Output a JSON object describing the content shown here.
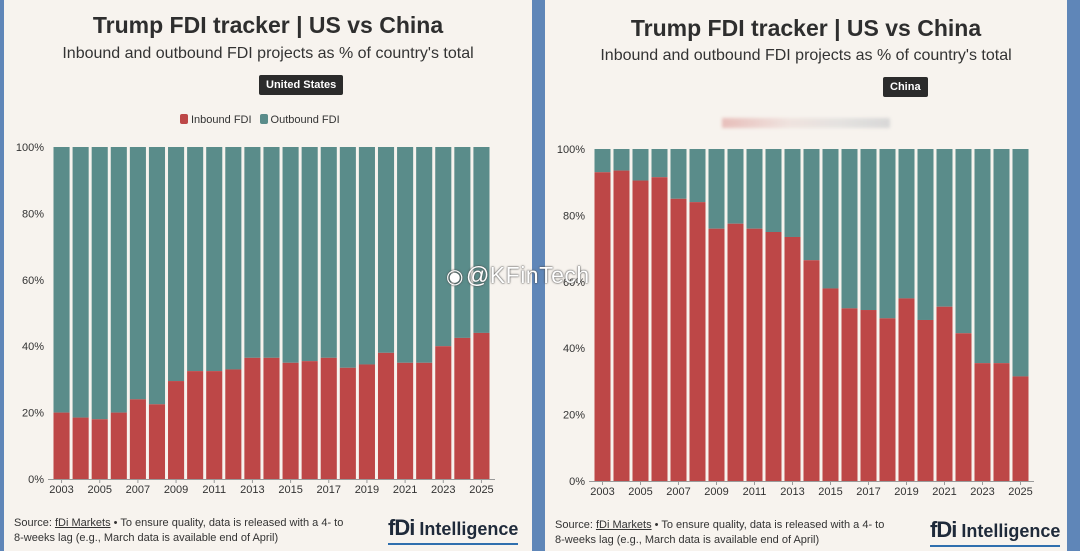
{
  "title": "Trump FDI tracker | US vs China",
  "subtitle": "Inbound and outbound FDI projects as % of country's total",
  "legend": {
    "inbound": "Inbound FDI",
    "outbound": "Outbound FDI"
  },
  "source": {
    "prefix": "Source: ",
    "link": "fDi Markets",
    "rest": " • To ensure quality, data is released with a 4- to",
    "line2": "8-weeks lag (e.g., March data is available end of April)"
  },
  "brand": {
    "logo": "fDi",
    "name": "Intelligence"
  },
  "watermark": "@KFinTech",
  "colors": {
    "inbound": "#bd4747",
    "outbound": "#5a8c8a",
    "background": "#f7f3ee",
    "frame": "#5f86b8"
  },
  "chart_data": [
    {
      "type": "bar",
      "stacked": true,
      "panel_label": "United States",
      "x_tick_labels": [
        "2003",
        "2005",
        "2007",
        "2009",
        "2011",
        "2013",
        "2015",
        "2017",
        "2019",
        "2021",
        "2023",
        "2025"
      ],
      "y_tick_labels": [
        "0%",
        "20%",
        "40%",
        "60%",
        "80%",
        "100%"
      ],
      "ylim": [
        0,
        100
      ],
      "categories": [
        2003,
        2004,
        2005,
        2006,
        2007,
        2008,
        2009,
        2010,
        2011,
        2012,
        2013,
        2014,
        2015,
        2016,
        2017,
        2018,
        2019,
        2020,
        2021,
        2022,
        2023,
        2024,
        2025
      ],
      "series": [
        {
          "name": "Inbound FDI",
          "values": [
            20,
            18.5,
            18,
            20,
            24,
            22.5,
            29.5,
            32.5,
            32.5,
            33,
            36.5,
            36.5,
            35,
            35.5,
            36.5,
            33.5,
            34.5,
            38,
            35,
            35,
            40,
            42.5,
            44
          ]
        },
        {
          "name": "Outbound FDI",
          "values": [
            80,
            81.5,
            82,
            80,
            76,
            77.5,
            70.5,
            67.5,
            67.5,
            67,
            63.5,
            63.5,
            65,
            64.5,
            63.5,
            66.5,
            65.5,
            62,
            65,
            65,
            60,
            57.5,
            56
          ]
        }
      ]
    },
    {
      "type": "bar",
      "stacked": true,
      "panel_label": "China",
      "x_tick_labels": [
        "2003",
        "2005",
        "2007",
        "2009",
        "2011",
        "2013",
        "2015",
        "2017",
        "2019",
        "2021",
        "2023",
        "2025"
      ],
      "y_tick_labels": [
        "0%",
        "20%",
        "40%",
        "60%",
        "80%",
        "100%"
      ],
      "ylim": [
        0,
        100
      ],
      "categories": [
        2003,
        2004,
        2005,
        2006,
        2007,
        2008,
        2009,
        2010,
        2011,
        2012,
        2013,
        2014,
        2015,
        2016,
        2017,
        2018,
        2019,
        2020,
        2021,
        2022,
        2023,
        2024,
        2025
      ],
      "series": [
        {
          "name": "Inbound FDI",
          "values": [
            93,
            93.5,
            90.5,
            91.5,
            85,
            84,
            76,
            77.5,
            76,
            75,
            73.5,
            66.5,
            58,
            52,
            51.5,
            49,
            55,
            48.5,
            52.5,
            44.5,
            35.5,
            35.5,
            31.5
          ]
        },
        {
          "name": "Outbound FDI",
          "values": [
            7,
            6.5,
            9.5,
            8.5,
            15,
            16,
            24,
            22.5,
            24,
            25,
            26.5,
            33.5,
            42,
            48,
            48.5,
            51,
            45,
            51.5,
            47.5,
            55.5,
            64.5,
            64.5,
            68.5
          ]
        }
      ]
    }
  ]
}
